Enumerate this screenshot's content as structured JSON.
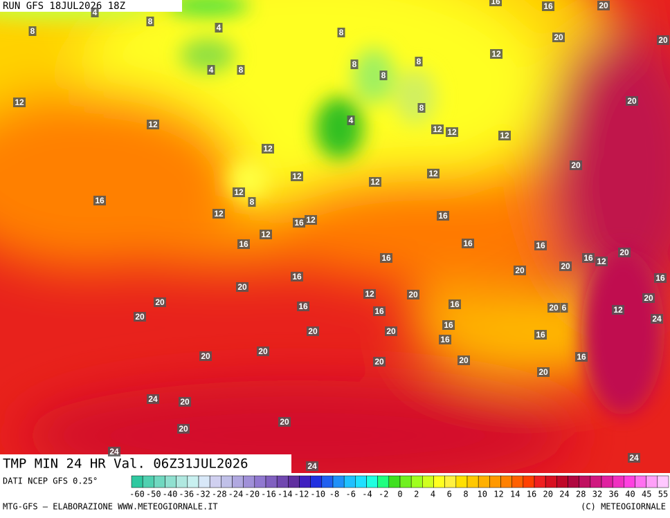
{
  "header": {
    "run": "RUN GFS 18JUL2026 18Z"
  },
  "footer": {
    "product": "TMP MIN 24 HR Val. 06Z31JUL2026",
    "source": "DATI NCEP GFS 0.25°",
    "credit": "MTG-GFS — ELABORAZIONE WWW.METEOGIORNALE.IT",
    "copyright": "(C) METEOGIORNALE"
  },
  "map_labels": [
    "4",
    "8",
    "8",
    "4",
    "8",
    "8",
    "4",
    "12",
    "12",
    "8",
    "8",
    "8",
    "8",
    "4",
    "12",
    "12",
    "12",
    "12",
    "16",
    "16",
    "20",
    "20",
    "20",
    "20",
    "20",
    "12",
    "12",
    "12",
    "12",
    "12",
    "8",
    "16",
    "12",
    "16",
    "12",
    "12",
    "16",
    "16",
    "16",
    "16",
    "20",
    "16",
    "12",
    "20",
    "20",
    "16",
    "16",
    "20",
    "20",
    "20",
    "12",
    "20",
    "16",
    "16",
    "16",
    "20",
    "6",
    "12",
    "20",
    "16",
    "24",
    "16",
    "20",
    "20",
    "16",
    "16",
    "20",
    "20",
    "20",
    "20",
    "16",
    "20",
    "24",
    "20",
    "20",
    "20",
    "24",
    "24",
    "24"
  ],
  "colorbar": {
    "labels": [
      -60,
      -50,
      -40,
      -36,
      -32,
      -28,
      -24,
      -20,
      -16,
      -14,
      -12,
      -10,
      -8,
      -6,
      -4,
      -2,
      0,
      2,
      4,
      6,
      8,
      10,
      12,
      14,
      16,
      20,
      24,
      28,
      32,
      36,
      40,
      45,
      55
    ]
  }
}
